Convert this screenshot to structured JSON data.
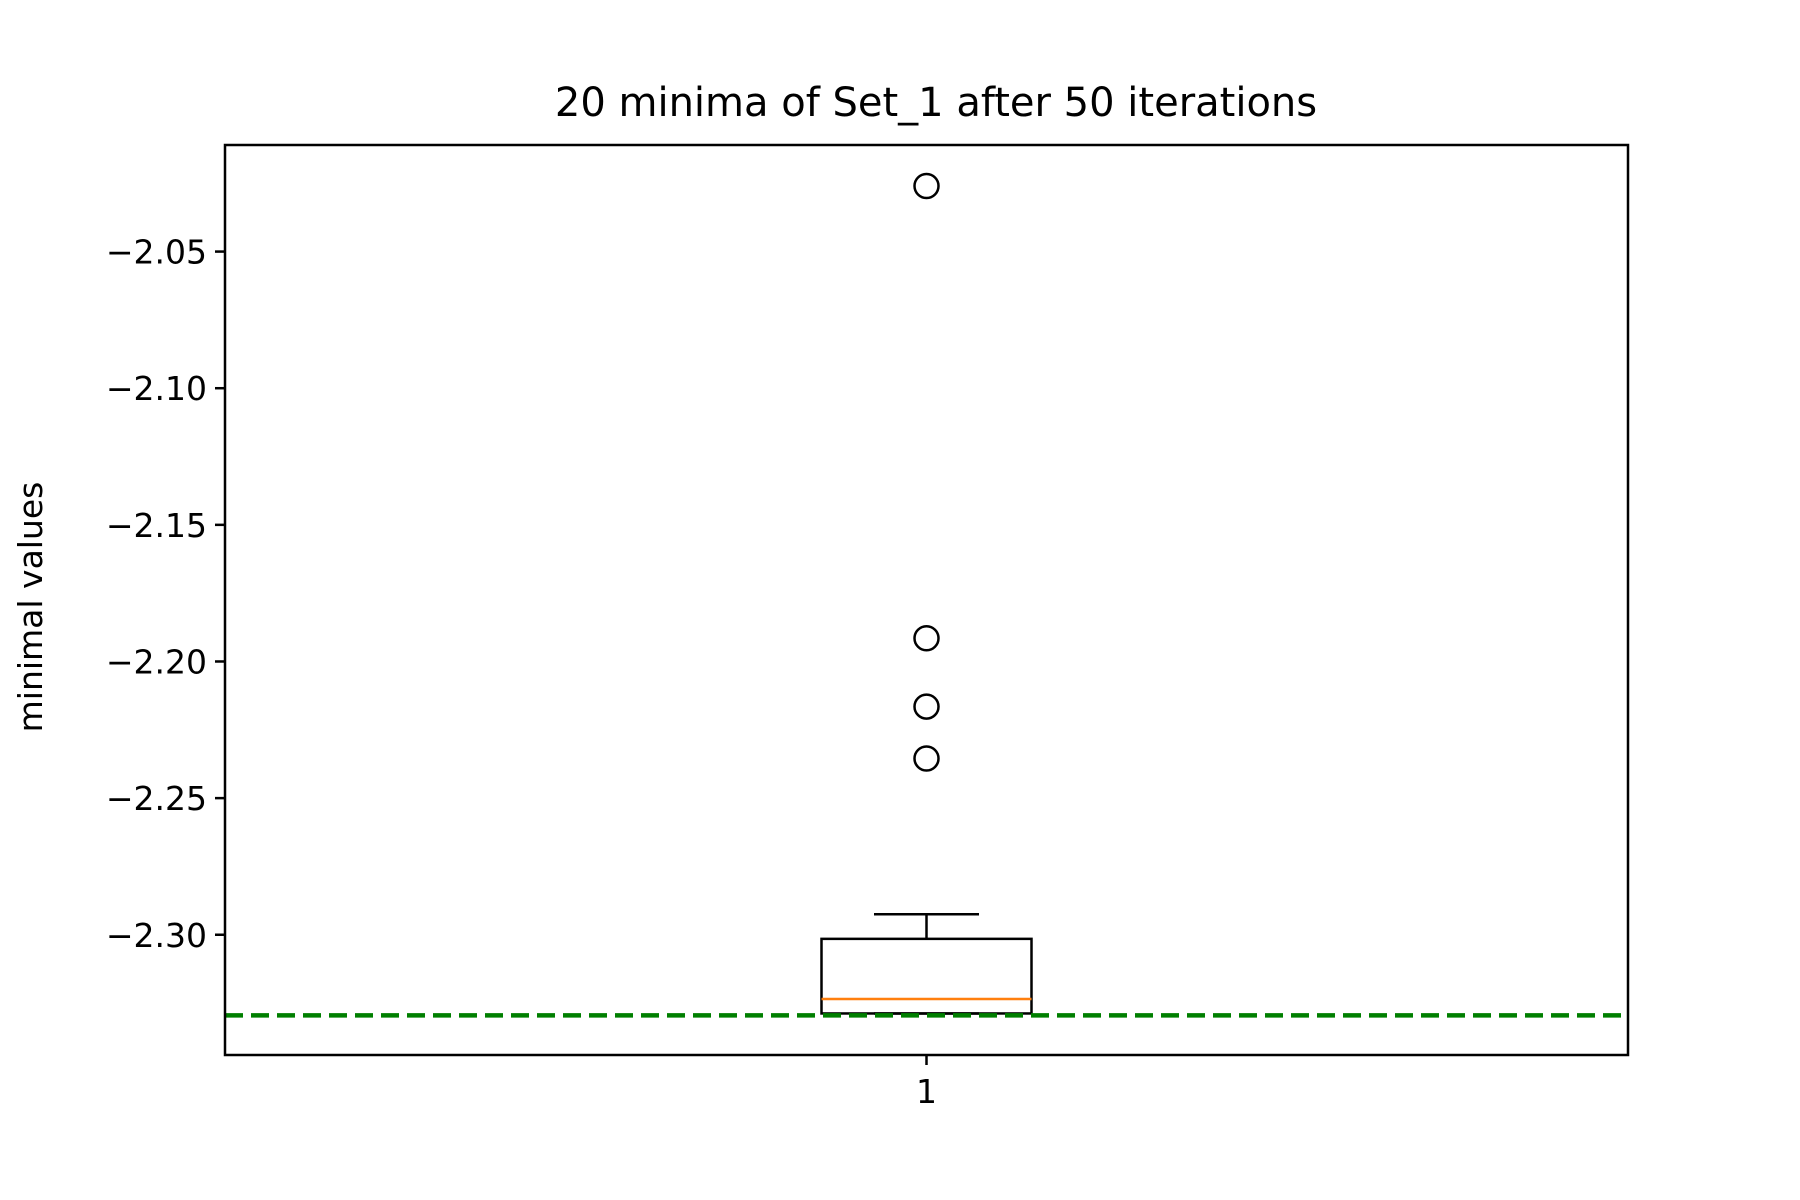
{
  "chart_data": {
    "type": "box",
    "title": "20 minima of Set_1 after 50 iterations",
    "xlabel": "",
    "ylabel": "minimal values",
    "categories": [
      "1"
    ],
    "ylim": [
      -2.344,
      -2.011
    ],
    "yticks": [
      -2.05,
      -2.1,
      -2.15,
      -2.2,
      -2.25,
      -2.3
    ],
    "ytick_labels": [
      "−2.05",
      "−2.10",
      "−2.15",
      "−2.20",
      "−2.25",
      "−2.30"
    ],
    "grid": false,
    "box": {
      "whisker_low": -2.3288,
      "q1": -2.3288,
      "median": -2.3235,
      "q3": -2.3015,
      "whisker_high": -2.2925,
      "outliers": [
        -2.026,
        -2.1915,
        -2.2165,
        -2.2355
      ]
    },
    "reference_line": {
      "value": -2.3295,
      "style": "dashed",
      "color": "#007f00"
    },
    "colors": {
      "box": "#000000",
      "median": "#ff7f0e",
      "reference": "#007f00"
    }
  }
}
